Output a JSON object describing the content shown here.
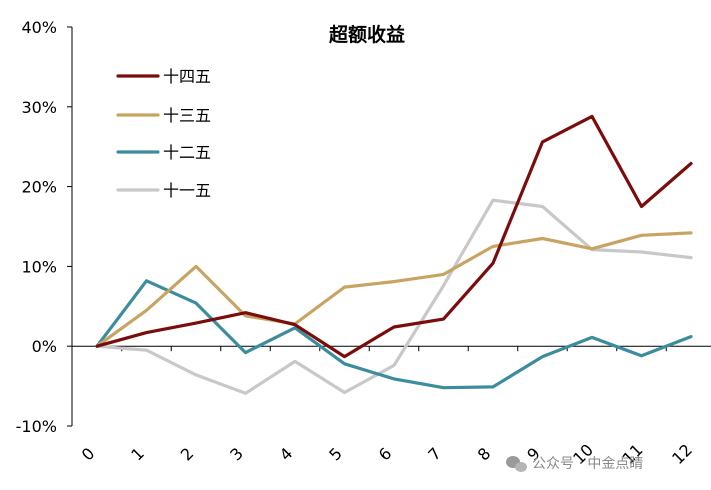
{
  "chart_data": {
    "type": "line",
    "title": "超额收益",
    "xlabel": "",
    "ylabel": "",
    "x": [
      "0",
      "1",
      "2",
      "3",
      "4",
      "5",
      "6",
      "7",
      "8",
      "9",
      "10",
      "11",
      "12"
    ],
    "ylim": [
      -10,
      40
    ],
    "yticks": [
      "-10%",
      "0%",
      "10%",
      "20%",
      "30%",
      "40%"
    ],
    "ytick_values": [
      -10,
      0,
      10,
      20,
      30,
      40
    ],
    "grid": false,
    "legend_position": "top-left",
    "series": [
      {
        "name": "十四五",
        "color": "#7b0c0c",
        "values": [
          0,
          1.7,
          2.9,
          4.2,
          2.7,
          -1.3,
          2.4,
          3.4,
          10.4,
          25.6,
          28.8,
          17.5,
          22.9
        ]
      },
      {
        "name": "十三五",
        "color": "#c8a463",
        "values": [
          0,
          4.5,
          10.0,
          3.8,
          2.8,
          7.4,
          8.1,
          9.0,
          12.5,
          13.5,
          12.2,
          13.9,
          14.2
        ]
      },
      {
        "name": "十二五",
        "color": "#3b8c9c",
        "values": [
          0,
          8.2,
          5.4,
          -0.8,
          2.3,
          -2.2,
          -4.1,
          -5.2,
          -5.1,
          -1.3,
          1.1,
          -1.2,
          1.2
        ]
      },
      {
        "name": "十一五",
        "color": "#c8c8c8",
        "values": [
          0,
          -0.5,
          -3.6,
          -5.9,
          -1.9,
          -5.8,
          -2.4,
          7.6,
          18.3,
          17.5,
          12.1,
          11.8,
          11.1
        ]
      }
    ]
  },
  "watermark": {
    "text": "公众号 · 中金点睛",
    "icon": "wechat-icon"
  }
}
